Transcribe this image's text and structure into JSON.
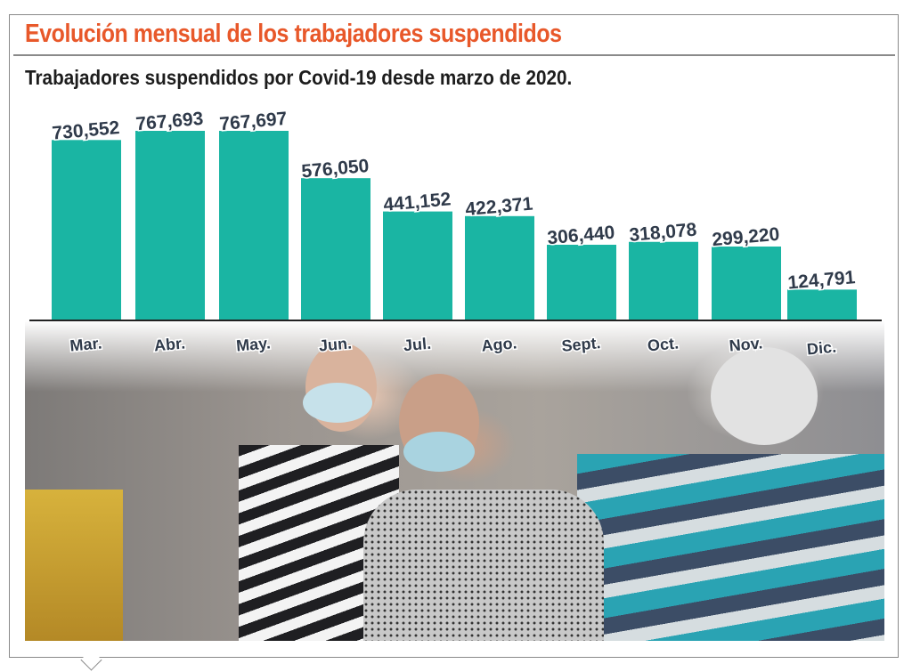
{
  "header": {
    "title": "Evolución mensual de los trabajadores suspendidos",
    "subtitle": "Trabajadores suspendidos por Covid-19 desde marzo de 2020."
  },
  "colors": {
    "title": "#e8582a",
    "bar": "#1ab5a3",
    "text": "#2f3a4a"
  },
  "chart_data": {
    "type": "bar",
    "title": "Evolución mensual de los trabajadores suspendidos",
    "subtitle": "Trabajadores suspendidos por Covid-19 desde marzo de 2020.",
    "categories": [
      "Mar.",
      "Abr.",
      "May.",
      "Jun.",
      "Jul.",
      "Ago.",
      "Sept.",
      "Oct.",
      "Nov.",
      "Dic."
    ],
    "values": [
      730552,
      767693,
      767697,
      576050,
      441152,
      422371,
      306440,
      318078,
      299220,
      124791
    ],
    "labels": [
      "730,552",
      "767,693",
      "767,697",
      "576,050",
      "441,152",
      "422,371",
      "306,440",
      "318,078",
      "299,220",
      "124,791"
    ],
    "xlabel": "",
    "ylabel": "",
    "ylim": [
      0,
      767697
    ],
    "grid": false
  }
}
